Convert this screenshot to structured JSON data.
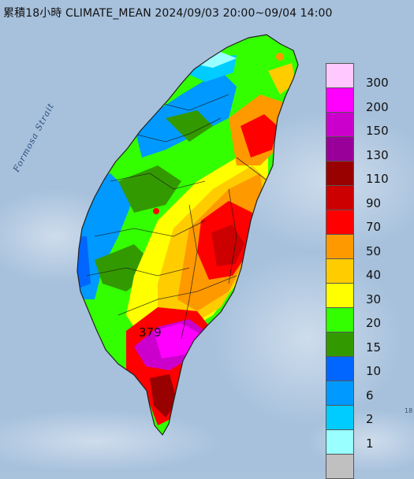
{
  "title": "累積18小時 CLIMATE_MEAN 2024/09/03 20:00~09/04 14:00",
  "strait_label": "Formosa Strait",
  "max_value_label": "379",
  "corner_mark": "18",
  "legend": [
    {
      "label": "300",
      "color": "#ffc9ff"
    },
    {
      "label": "200",
      "color": "#ff00ff"
    },
    {
      "label": "150",
      "color": "#cc00cc"
    },
    {
      "label": "130",
      "color": "#990099"
    },
    {
      "label": "110",
      "color": "#990000"
    },
    {
      "label": "90",
      "color": "#cc0000"
    },
    {
      "label": "70",
      "color": "#ff0000"
    },
    {
      "label": "50",
      "color": "#ff9900"
    },
    {
      "label": "40",
      "color": "#ffcc00"
    },
    {
      "label": "30",
      "color": "#ffff00"
    },
    {
      "label": "20",
      "color": "#33ff00"
    },
    {
      "label": "15",
      "color": "#339900"
    },
    {
      "label": "10",
      "color": "#0066ff"
    },
    {
      "label": "6",
      "color": "#0099ff"
    },
    {
      "label": "2",
      "color": "#00ccff"
    },
    {
      "label": "1",
      "color": "#99ffff"
    },
    {
      "label": "",
      "color": "#c0c0c0"
    }
  ]
}
